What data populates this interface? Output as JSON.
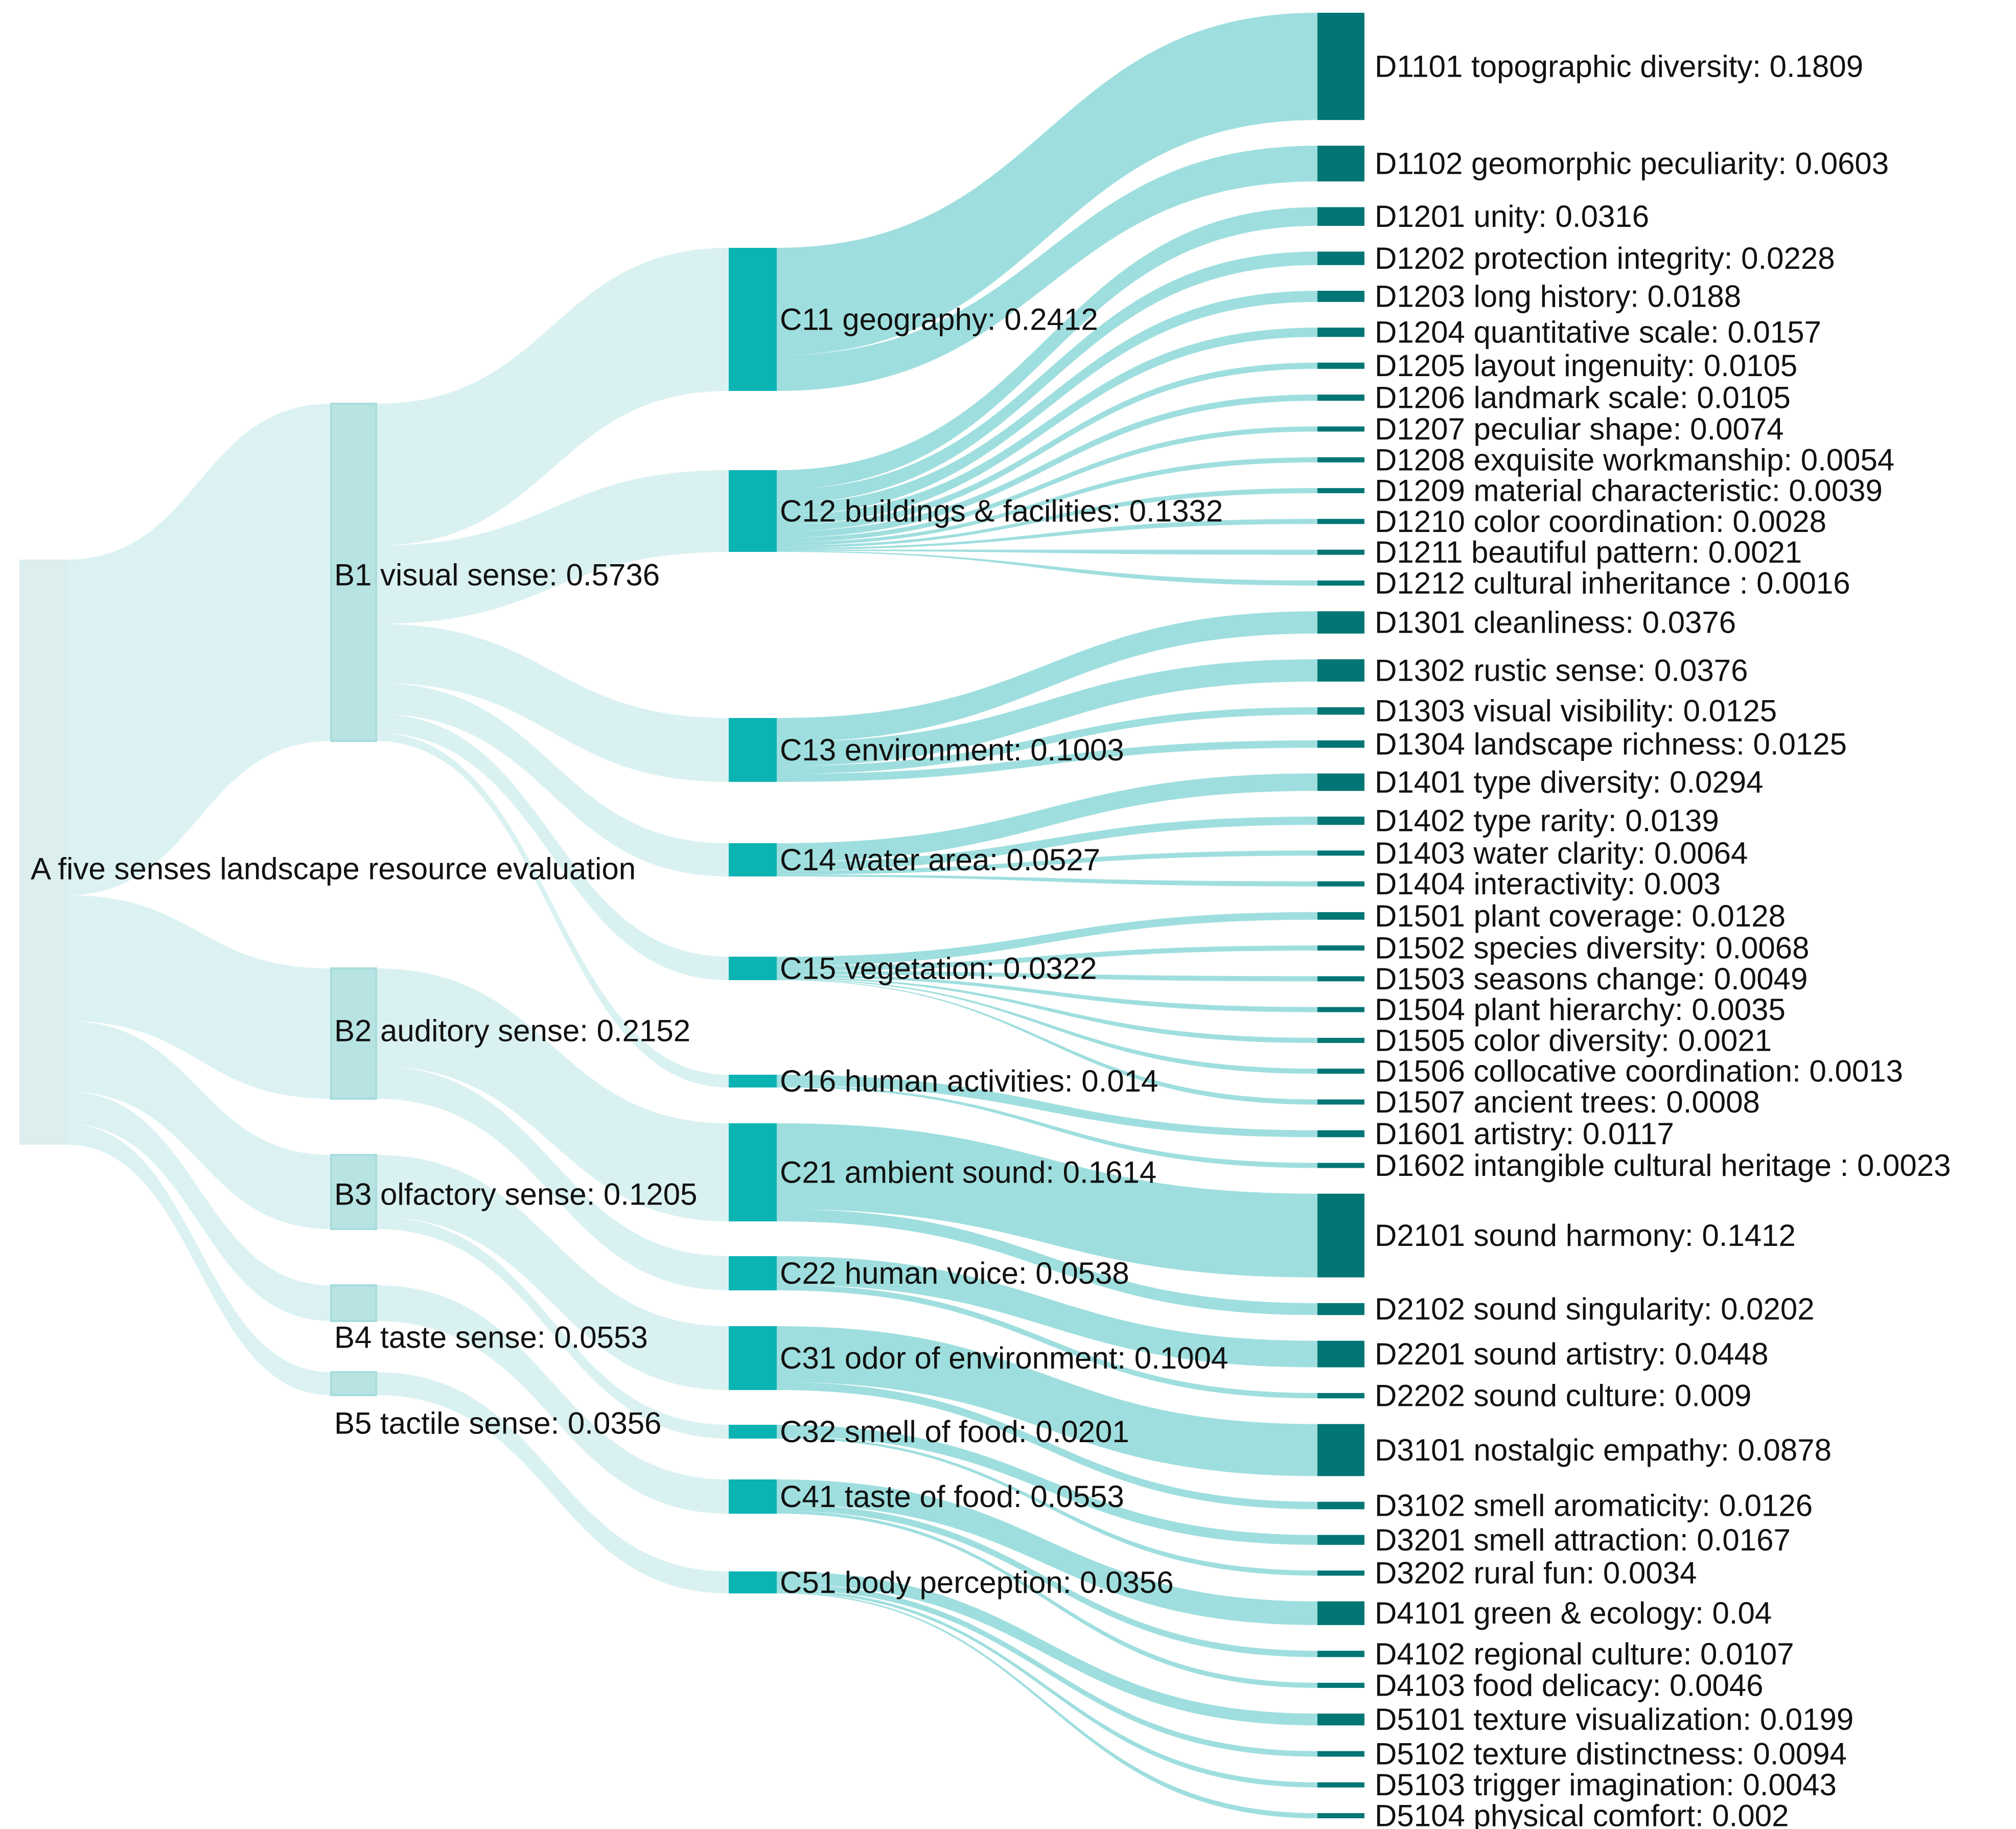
{
  "chart_data": {
    "type": "sankey",
    "title": "",
    "colors": {
      "root_node": "#dceeee",
      "b_node": "#b7e3e3",
      "c_node": "#0bb3b3",
      "d_node": "#027575",
      "link_light": "#d6f0f0",
      "link_dark": "#9adcdc"
    },
    "nodes": [
      {
        "id": "A",
        "level": 0,
        "label": "A five senses landscape resource evaluation",
        "value": 1.0
      },
      {
        "id": "B1",
        "level": 1,
        "label": "B1 visual sense: 0.5736",
        "value": 0.5736
      },
      {
        "id": "B2",
        "level": 1,
        "label": "B2 auditory sense: 0.2152",
        "value": 0.2152
      },
      {
        "id": "B3",
        "level": 1,
        "label": "B3 olfactory sense: 0.1205",
        "value": 0.1205
      },
      {
        "id": "B4",
        "level": 1,
        "label": "B4 taste sense: 0.0553",
        "value": 0.0553
      },
      {
        "id": "B5",
        "level": 1,
        "label": "B5 tactile sense: 0.0356",
        "value": 0.0356
      },
      {
        "id": "C11",
        "level": 2,
        "label": "C11 geography: 0.2412",
        "value": 0.2412
      },
      {
        "id": "C12",
        "level": 2,
        "label": "C12 buildings & facilities: 0.1332",
        "value": 0.1332
      },
      {
        "id": "C13",
        "level": 2,
        "label": "C13 environment: 0.1003",
        "value": 0.1003
      },
      {
        "id": "C14",
        "level": 2,
        "label": "C14 water area: 0.0527",
        "value": 0.0527
      },
      {
        "id": "C15",
        "level": 2,
        "label": "C15 vegetation: 0.0322",
        "value": 0.0322
      },
      {
        "id": "C16",
        "level": 2,
        "label": "C16 human activities: 0.014",
        "value": 0.014
      },
      {
        "id": "C21",
        "level": 2,
        "label": "C21 ambient sound: 0.1614",
        "value": 0.1614
      },
      {
        "id": "C22",
        "level": 2,
        "label": "C22 human voice: 0.0538",
        "value": 0.0538
      },
      {
        "id": "C31",
        "level": 2,
        "label": "C31 odor of environment: 0.1004",
        "value": 0.1004
      },
      {
        "id": "C32",
        "level": 2,
        "label": "C32 smell of food: 0.0201",
        "value": 0.0201
      },
      {
        "id": "C41",
        "level": 2,
        "label": "C41 taste of food: 0.0553",
        "value": 0.0553
      },
      {
        "id": "C51",
        "level": 2,
        "label": "C51 body perception: 0.0356",
        "value": 0.0356
      },
      {
        "id": "D1101",
        "level": 3,
        "label": "D1101 topographic diversity: 0.1809",
        "value": 0.1809
      },
      {
        "id": "D1102",
        "level": 3,
        "label": "D1102 geomorphic peculiarity: 0.0603",
        "value": 0.0603
      },
      {
        "id": "D1201",
        "level": 3,
        "label": "D1201 unity: 0.0316",
        "value": 0.0316
      },
      {
        "id": "D1202",
        "level": 3,
        "label": "D1202 protection integrity: 0.0228",
        "value": 0.0228
      },
      {
        "id": "D1203",
        "level": 3,
        "label": "D1203 long history: 0.0188",
        "value": 0.0188
      },
      {
        "id": "D1204",
        "level": 3,
        "label": "D1204 quantitative scale: 0.0157",
        "value": 0.0157
      },
      {
        "id": "D1205",
        "level": 3,
        "label": "D1205 layout ingenuity: 0.0105",
        "value": 0.0105
      },
      {
        "id": "D1206",
        "level": 3,
        "label": "D1206 landmark scale: 0.0105",
        "value": 0.0105
      },
      {
        "id": "D1207",
        "level": 3,
        "label": "D1207 peculiar shape: 0.0074",
        "value": 0.0074
      },
      {
        "id": "D1208",
        "level": 3,
        "label": "D1208 exquisite workmanship: 0.0054",
        "value": 0.0054
      },
      {
        "id": "D1209",
        "level": 3,
        "label": "D1209 material characteristic: 0.0039",
        "value": 0.0039
      },
      {
        "id": "D1210",
        "level": 3,
        "label": "D1210 color coordination: 0.0028",
        "value": 0.0028
      },
      {
        "id": "D1211",
        "level": 3,
        "label": "D1211 beautiful pattern: 0.0021",
        "value": 0.0021
      },
      {
        "id": "D1212",
        "level": 3,
        "label": "D1212 cultural inheritance : 0.0016",
        "value": 0.0016
      },
      {
        "id": "D1301",
        "level": 3,
        "label": "D1301 cleanliness: 0.0376",
        "value": 0.0376
      },
      {
        "id": "D1302",
        "level": 3,
        "label": "D1302 rustic sense: 0.0376",
        "value": 0.0376
      },
      {
        "id": "D1303",
        "level": 3,
        "label": "D1303 visual visibility: 0.0125",
        "value": 0.0125
      },
      {
        "id": "D1304",
        "level": 3,
        "label": "D1304 landscape richness: 0.0125",
        "value": 0.0125
      },
      {
        "id": "D1401",
        "level": 3,
        "label": "D1401 type diversity: 0.0294",
        "value": 0.0294
      },
      {
        "id": "D1402",
        "level": 3,
        "label": "D1402 type rarity: 0.0139",
        "value": 0.0139
      },
      {
        "id": "D1403",
        "level": 3,
        "label": "D1403 water clarity: 0.0064",
        "value": 0.0064
      },
      {
        "id": "D1404",
        "level": 3,
        "label": "D1404 interactivity: 0.003",
        "value": 0.003
      },
      {
        "id": "D1501",
        "level": 3,
        "label": "D1501 plant coverage: 0.0128",
        "value": 0.0128
      },
      {
        "id": "D1502",
        "level": 3,
        "label": "D1502 species diversity: 0.0068",
        "value": 0.0068
      },
      {
        "id": "D1503",
        "level": 3,
        "label": "D1503 seasons change: 0.0049",
        "value": 0.0049
      },
      {
        "id": "D1504",
        "level": 3,
        "label": "D1504 plant hierarchy: 0.0035",
        "value": 0.0035
      },
      {
        "id": "D1505",
        "level": 3,
        "label": "D1505 color diversity: 0.0021",
        "value": 0.0021
      },
      {
        "id": "D1506",
        "level": 3,
        "label": "D1506 collocative coordination: 0.0013",
        "value": 0.0013
      },
      {
        "id": "D1507",
        "level": 3,
        "label": "D1507 ancient trees: 0.0008",
        "value": 0.0008
      },
      {
        "id": "D1601",
        "level": 3,
        "label": "D1601 artistry: 0.0117",
        "value": 0.0117
      },
      {
        "id": "D1602",
        "level": 3,
        "label": "D1602 intangible cultural heritage : 0.0023",
        "value": 0.0023
      },
      {
        "id": "D2101",
        "level": 3,
        "label": "D2101 sound harmony: 0.1412",
        "value": 0.1412
      },
      {
        "id": "D2102",
        "level": 3,
        "label": "D2102 sound singularity: 0.0202",
        "value": 0.0202
      },
      {
        "id": "D2201",
        "level": 3,
        "label": "D2201 sound artistry: 0.0448",
        "value": 0.0448
      },
      {
        "id": "D2202",
        "level": 3,
        "label": "D2202 sound culture: 0.009",
        "value": 0.009
      },
      {
        "id": "D3101",
        "level": 3,
        "label": "D3101 nostalgic empathy: 0.0878",
        "value": 0.0878
      },
      {
        "id": "D3102",
        "level": 3,
        "label": "D3102 smell aromaticity: 0.0126",
        "value": 0.0126
      },
      {
        "id": "D3201",
        "level": 3,
        "label": "D3201 smell attraction: 0.0167",
        "value": 0.0167
      },
      {
        "id": "D3202",
        "level": 3,
        "label": "D3202 rural fun: 0.0034",
        "value": 0.0034
      },
      {
        "id": "D4101",
        "level": 3,
        "label": "D4101 green & ecology: 0.04",
        "value": 0.04
      },
      {
        "id": "D4102",
        "level": 3,
        "label": "D4102 regional culture: 0.0107",
        "value": 0.0107
      },
      {
        "id": "D4103",
        "level": 3,
        "label": "D4103 food delicacy: 0.0046",
        "value": 0.0046
      },
      {
        "id": "D5101",
        "level": 3,
        "label": "D5101 texture visualization: 0.0199",
        "value": 0.0199
      },
      {
        "id": "D5102",
        "level": 3,
        "label": "D5102 texture distinctness: 0.0094",
        "value": 0.0094
      },
      {
        "id": "D5103",
        "level": 3,
        "label": "D5103 trigger imagination: 0.0043",
        "value": 0.0043
      },
      {
        "id": "D5104",
        "level": 3,
        "label": "D5104  physical comfort: 0.002",
        "value": 0.002
      }
    ],
    "links": [
      {
        "source": "A",
        "target": "B1",
        "value": 0.5736
      },
      {
        "source": "A",
        "target": "B2",
        "value": 0.2152
      },
      {
        "source": "A",
        "target": "B3",
        "value": 0.1205
      },
      {
        "source": "A",
        "target": "B4",
        "value": 0.0553
      },
      {
        "source": "A",
        "target": "B5",
        "value": 0.0356
      },
      {
        "source": "B1",
        "target": "C11",
        "value": 0.2412
      },
      {
        "source": "B1",
        "target": "C12",
        "value": 0.1332
      },
      {
        "source": "B1",
        "target": "C13",
        "value": 0.1003
      },
      {
        "source": "B1",
        "target": "C14",
        "value": 0.0527
      },
      {
        "source": "B1",
        "target": "C15",
        "value": 0.0322
      },
      {
        "source": "B1",
        "target": "C16",
        "value": 0.014
      },
      {
        "source": "B2",
        "target": "C21",
        "value": 0.1614
      },
      {
        "source": "B2",
        "target": "C22",
        "value": 0.0538
      },
      {
        "source": "B3",
        "target": "C31",
        "value": 0.1004
      },
      {
        "source": "B3",
        "target": "C32",
        "value": 0.0201
      },
      {
        "source": "B4",
        "target": "C41",
        "value": 0.0553
      },
      {
        "source": "B5",
        "target": "C51",
        "value": 0.0356
      },
      {
        "source": "C11",
        "target": "D1101",
        "value": 0.1809
      },
      {
        "source": "C11",
        "target": "D1102",
        "value": 0.0603
      },
      {
        "source": "C12",
        "target": "D1201",
        "value": 0.0316
      },
      {
        "source": "C12",
        "target": "D1202",
        "value": 0.0228
      },
      {
        "source": "C12",
        "target": "D1203",
        "value": 0.0188
      },
      {
        "source": "C12",
        "target": "D1204",
        "value": 0.0157
      },
      {
        "source": "C12",
        "target": "D1205",
        "value": 0.0105
      },
      {
        "source": "C12",
        "target": "D1206",
        "value": 0.0105
      },
      {
        "source": "C12",
        "target": "D1207",
        "value": 0.0074
      },
      {
        "source": "C12",
        "target": "D1208",
        "value": 0.0054
      },
      {
        "source": "C12",
        "target": "D1209",
        "value": 0.0039
      },
      {
        "source": "C12",
        "target": "D1210",
        "value": 0.0028
      },
      {
        "source": "C12",
        "target": "D1211",
        "value": 0.0021
      },
      {
        "source": "C12",
        "target": "D1212",
        "value": 0.0016
      },
      {
        "source": "C13",
        "target": "D1301",
        "value": 0.0376
      },
      {
        "source": "C13",
        "target": "D1302",
        "value": 0.0376
      },
      {
        "source": "C13",
        "target": "D1303",
        "value": 0.0125
      },
      {
        "source": "C13",
        "target": "D1304",
        "value": 0.0125
      },
      {
        "source": "C14",
        "target": "D1401",
        "value": 0.0294
      },
      {
        "source": "C14",
        "target": "D1402",
        "value": 0.0139
      },
      {
        "source": "C14",
        "target": "D1403",
        "value": 0.0064
      },
      {
        "source": "C14",
        "target": "D1404",
        "value": 0.003
      },
      {
        "source": "C15",
        "target": "D1501",
        "value": 0.0128
      },
      {
        "source": "C15",
        "target": "D1502",
        "value": 0.0068
      },
      {
        "source": "C15",
        "target": "D1503",
        "value": 0.0049
      },
      {
        "source": "C15",
        "target": "D1504",
        "value": 0.0035
      },
      {
        "source": "C15",
        "target": "D1505",
        "value": 0.0021
      },
      {
        "source": "C15",
        "target": "D1506",
        "value": 0.0013
      },
      {
        "source": "C15",
        "target": "D1507",
        "value": 0.0008
      },
      {
        "source": "C16",
        "target": "D1601",
        "value": 0.0117
      },
      {
        "source": "C16",
        "target": "D1602",
        "value": 0.0023
      },
      {
        "source": "C21",
        "target": "D2101",
        "value": 0.1412
      },
      {
        "source": "C21",
        "target": "D2102",
        "value": 0.0202
      },
      {
        "source": "C22",
        "target": "D2201",
        "value": 0.0448
      },
      {
        "source": "C22",
        "target": "D2202",
        "value": 0.009
      },
      {
        "source": "C31",
        "target": "D3101",
        "value": 0.0878
      },
      {
        "source": "C31",
        "target": "D3102",
        "value": 0.0126
      },
      {
        "source": "C32",
        "target": "D3201",
        "value": 0.0167
      },
      {
        "source": "C32",
        "target": "D3202",
        "value": 0.0034
      },
      {
        "source": "C41",
        "target": "D4101",
        "value": 0.04
      },
      {
        "source": "C41",
        "target": "D4102",
        "value": 0.0107
      },
      {
        "source": "C41",
        "target": "D4103",
        "value": 0.0046
      },
      {
        "source": "C51",
        "target": "D5101",
        "value": 0.0199
      },
      {
        "source": "C51",
        "target": "D5102",
        "value": 0.0094
      },
      {
        "source": "C51",
        "target": "D5103",
        "value": 0.0043
      },
      {
        "source": "C51",
        "target": "D5104",
        "value": 0.002
      }
    ]
  }
}
